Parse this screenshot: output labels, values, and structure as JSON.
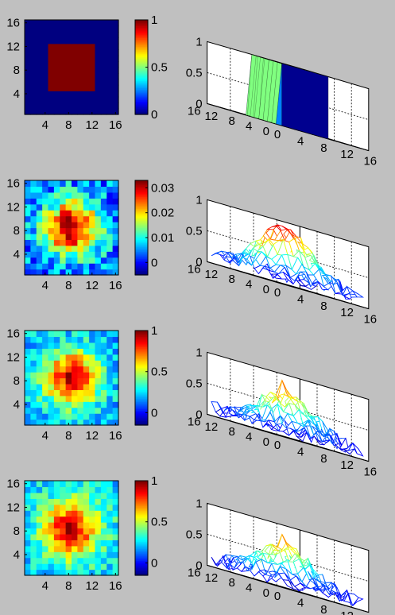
{
  "figure": {
    "background": "#c0c0c0",
    "colormap": "jet",
    "grid_size": 16
  },
  "chart_data": [
    {
      "type": "heatmap",
      "title": "",
      "x_ticks": [
        "4",
        "8",
        "12",
        "16"
      ],
      "y_ticks": [
        "4",
        "8",
        "12",
        "16"
      ],
      "colorbar": {
        "range": [
          0,
          1
        ],
        "ticks": [
          "0",
          "0.5",
          "1"
        ]
      },
      "model": {
        "kind": "square",
        "square_min": 5,
        "square_max": 12,
        "value_inside": 1,
        "value_outside": 0
      }
    },
    {
      "type": "surface",
      "title": "",
      "zlim": [
        0,
        1
      ],
      "z_ticks": [
        "0",
        "0.5",
        "1"
      ],
      "x_ticks": [
        "0",
        "4",
        "8",
        "12",
        "16"
      ],
      "y_ticks": [
        "0",
        "4",
        "8",
        "12",
        "16"
      ],
      "model": {
        "kind": "square",
        "square_min": 5,
        "square_max": 12,
        "value_inside": 1,
        "value_outside": 0
      },
      "faceted": true
    },
    {
      "type": "heatmap",
      "title": "",
      "x_ticks": [
        "4",
        "8",
        "12",
        "16"
      ],
      "y_ticks": [
        "4",
        "8",
        "12",
        "16"
      ],
      "colorbar": {
        "range": [
          -0.005,
          0.033
        ],
        "ticks": [
          "0",
          "0.01",
          "0.02",
          "0.03"
        ]
      },
      "model": {
        "kind": "blob",
        "peak": 0.033,
        "base": 0.004,
        "noise": 0.006,
        "center": [
          8.5,
          8.5
        ],
        "sigma": 3.2,
        "seed": 11
      }
    },
    {
      "type": "surface",
      "title": "",
      "zlim": [
        0,
        1
      ],
      "z_ticks": [
        "0",
        "0.5",
        "1"
      ],
      "x_ticks": [
        "0",
        "4",
        "8",
        "12",
        "16"
      ],
      "y_ticks": [
        "0",
        "4",
        "8",
        "12",
        "16"
      ],
      "model": {
        "kind": "blob",
        "peak": 0.95,
        "base": 0.12,
        "noise": 0.12,
        "center": [
          8.5,
          8.5
        ],
        "sigma": 3.4,
        "seed": 11
      },
      "faceted": false
    },
    {
      "type": "heatmap",
      "title": "",
      "x_ticks": [
        "4",
        "8",
        "12",
        "16"
      ],
      "y_ticks": [
        "4",
        "8",
        "12",
        "16"
      ],
      "colorbar": {
        "range": [
          -0.15,
          1
        ],
        "ticks": [
          "0",
          "0.5",
          "1"
        ]
      },
      "model": {
        "kind": "blob",
        "peak": 0.9,
        "base": 0.2,
        "noise": 0.13,
        "center": [
          8.5,
          8.5
        ],
        "sigma": 3.3,
        "seed": 23,
        "spike": [
          9,
          8,
          1.0
        ]
      }
    },
    {
      "type": "surface",
      "title": "",
      "zlim": [
        0,
        1
      ],
      "z_ticks": [
        "0",
        "0.5",
        "1"
      ],
      "x_ticks": [
        "0",
        "4",
        "8",
        "12",
        "16"
      ],
      "y_ticks": [
        "0",
        "4",
        "8",
        "12",
        "16"
      ],
      "model": {
        "kind": "blob",
        "peak": 0.7,
        "base": 0.12,
        "noise": 0.12,
        "center": [
          8.5,
          8.5
        ],
        "sigma": 3.4,
        "seed": 23,
        "spike": [
          9,
          8,
          0.9
        ]
      },
      "faceted": false
    },
    {
      "type": "heatmap",
      "title": "",
      "x_ticks": [
        "4",
        "8",
        "12",
        "16"
      ],
      "y_ticks": [
        "4",
        "8",
        "12",
        "16"
      ],
      "colorbar": {
        "range": [
          -0.15,
          1
        ],
        "ticks": [
          "0",
          "0.5",
          "1"
        ]
      },
      "model": {
        "kind": "blob",
        "peak": 0.9,
        "base": 0.25,
        "noise": 0.13,
        "center": [
          8.5,
          8.5
        ],
        "sigma": 3.3,
        "seed": 37,
        "spike": [
          9,
          8,
          1.0
        ]
      }
    },
    {
      "type": "surface",
      "title": "",
      "zlim": [
        0,
        1
      ],
      "z_ticks": [
        "0",
        "0.5",
        "1"
      ],
      "x_ticks": [
        "0",
        "4",
        "8",
        "12",
        "16"
      ],
      "y_ticks": [
        "0",
        "4",
        "8",
        "12",
        "16"
      ],
      "model": {
        "kind": "blob",
        "peak": 0.65,
        "base": 0.12,
        "noise": 0.12,
        "center": [
          8.5,
          8.5
        ],
        "sigma": 3.4,
        "seed": 37,
        "spike": [
          9,
          8,
          0.85
        ]
      },
      "faceted": false
    }
  ]
}
